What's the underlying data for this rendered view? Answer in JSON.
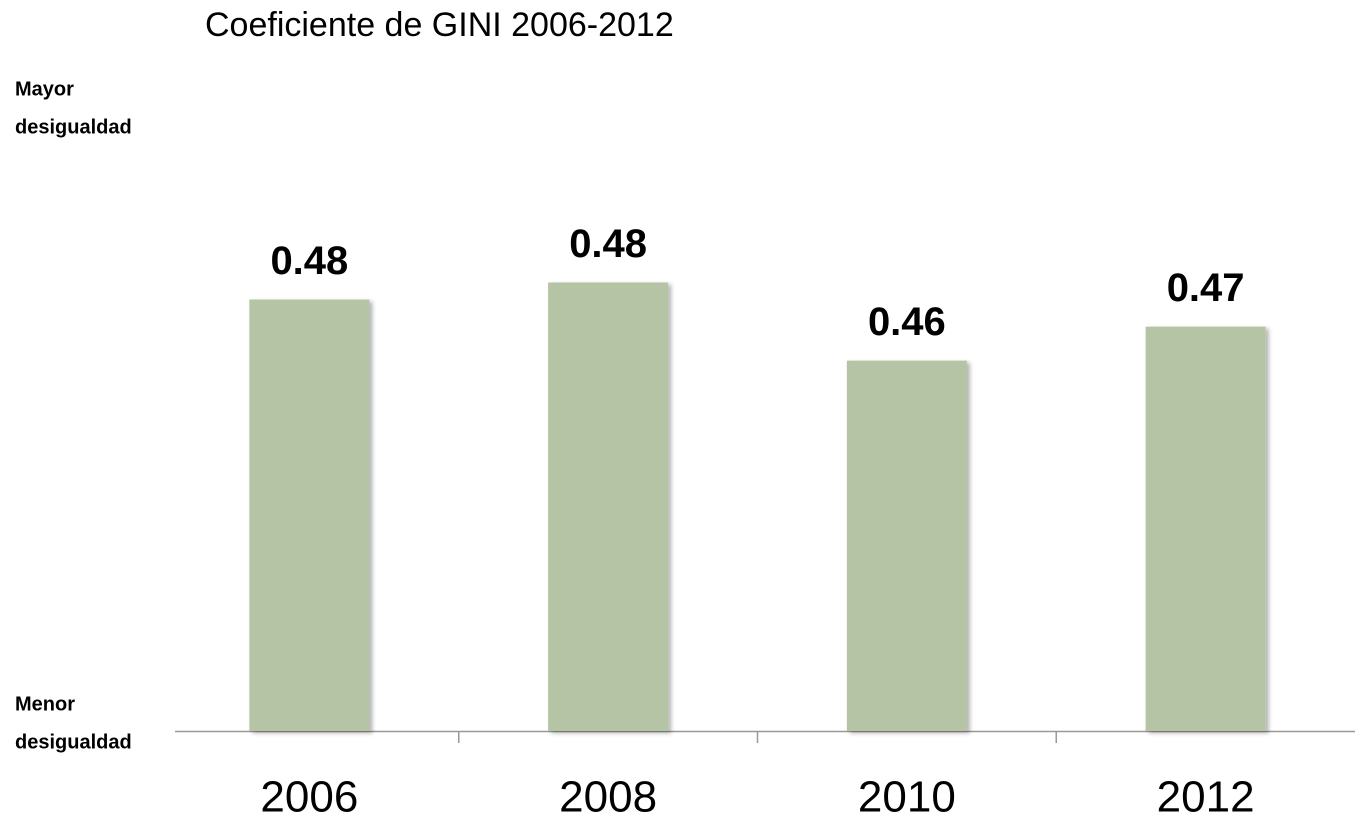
{
  "chart_data": {
    "type": "bar",
    "title": "Coeficiente de GINI 2006-2012",
    "top_label": [
      "Mayor",
      "desigualdad"
    ],
    "bottom_label": [
      "Menor",
      "desigualdad"
    ],
    "categories": [
      "2006",
      "2008",
      "2010",
      "2012"
    ],
    "values": [
      0.479,
      0.484,
      0.461,
      0.471
    ],
    "value_labels": [
      "0.48",
      "0.48",
      "0.46",
      "0.47"
    ],
    "color": "#b5c4a4",
    "ylim": [
      0.352,
      0.523
    ]
  }
}
